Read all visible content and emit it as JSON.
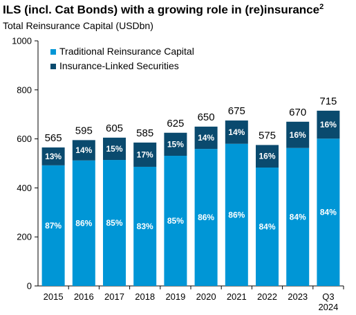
{
  "header": {
    "title": "ILS (incl. Cat Bonds) with a growing role in (re)insurance",
    "title_footnote": "2",
    "subtitle": "Total Reinsurance Capital (USDbn)"
  },
  "chart_data": {
    "type": "bar",
    "stacked": true,
    "categories": [
      "2015",
      "2016",
      "2017",
      "2018",
      "2019",
      "2020",
      "2021",
      "2022",
      "2023",
      "Q3 2024"
    ],
    "series": [
      {
        "name": "Traditional Reinsurance Capital",
        "color": "#0096d6",
        "values": [
          492,
          512,
          514,
          486,
          531,
          559,
          580,
          483,
          563,
          601
        ],
        "shares": [
          "87%",
          "86%",
          "85%",
          "83%",
          "85%",
          "86%",
          "86%",
          "84%",
          "84%",
          "84%"
        ]
      },
      {
        "name": "Insurance-Linked Securities",
        "color": "#0a4a6e",
        "values": [
          73,
          83,
          91,
          99,
          94,
          91,
          95,
          92,
          107,
          114
        ],
        "shares": [
          "13%",
          "14%",
          "15%",
          "17%",
          "15%",
          "14%",
          "14%",
          "16%",
          "16%",
          "16%"
        ]
      }
    ],
    "totals": [
      "565",
      "595",
      "605",
      "585",
      "625",
      "650",
      "675",
      "575",
      "670",
      "715"
    ],
    "y_ticks": [
      "0",
      "200",
      "400",
      "600",
      "800",
      "1000"
    ],
    "ylim": [
      0,
      1000
    ],
    "grid": false,
    "legend_position": "top-left"
  }
}
